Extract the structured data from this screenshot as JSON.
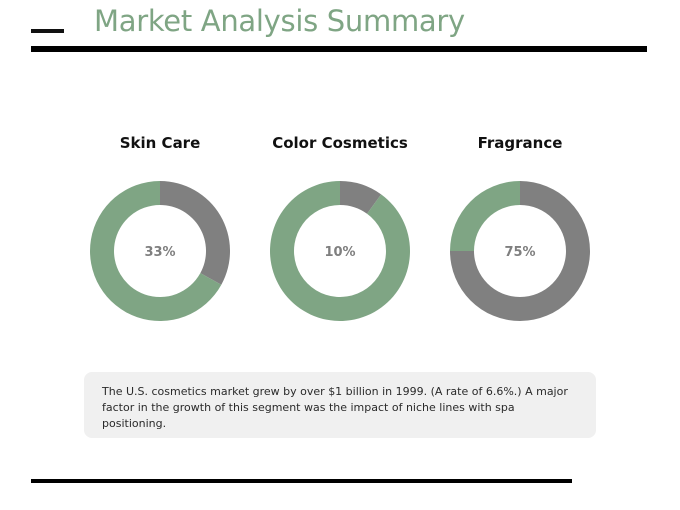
{
  "title": "Market Analysis Summary",
  "colors": {
    "accent": "#7fa584",
    "dark": "#808080",
    "text": "#111111"
  },
  "chart_data": [
    {
      "type": "pie",
      "title": "Skin Care",
      "label": "33%",
      "slices": [
        {
          "value": 33,
          "color": "#808080"
        },
        {
          "value": 67,
          "color": "#7fa584"
        }
      ]
    },
    {
      "type": "pie",
      "title": "Color Cosmetics",
      "label": "10%",
      "slices": [
        {
          "value": 10,
          "color": "#808080"
        },
        {
          "value": 90,
          "color": "#7fa584"
        }
      ]
    },
    {
      "type": "pie",
      "title": "Fragrance",
      "label": "75%",
      "slices": [
        {
          "value": 75,
          "color": "#808080"
        },
        {
          "value": 25,
          "color": "#7fa584"
        }
      ]
    }
  ],
  "note": {
    "text": "The U.S. cosmetics market grew by over $1 billion in 1999. (A rate of 6.6%.) A major factor in the growth of this segment was the impact of niche lines with spa positioning."
  }
}
